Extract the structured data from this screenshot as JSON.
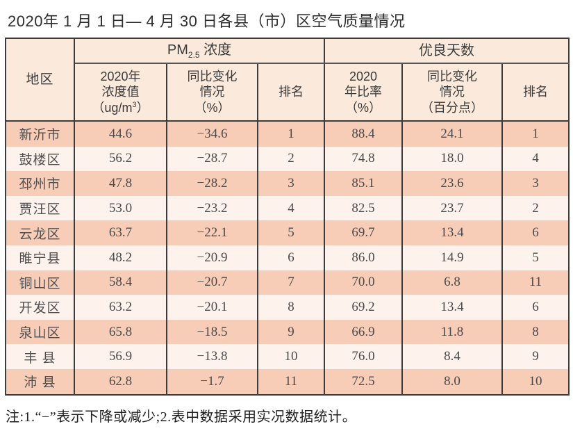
{
  "colors": {
    "row_salmon": "#f8cdb8",
    "row_light": "#fdf2ec",
    "header_bg": "#fbeadb",
    "border_dark": "#3c3c3c",
    "text_main": "#4a4a4a",
    "title_text": "#2d2d2d"
  },
  "title": "2020年 1 月 1 日— 4 月 30 日各县（市）区空气质量情况",
  "table": {
    "header": {
      "region": "地区",
      "pm_group": {
        "prefix": "PM",
        "sub": "2.5",
        "suffix": " 浓度"
      },
      "good_group": "优良天数",
      "pm_value": {
        "line1": "2020年",
        "line2": "浓度值",
        "line3_pre": "（ug/m",
        "line3_sup": "3",
        "line3_post": "）"
      },
      "pm_change": {
        "line1": "同比变化",
        "line2": "情况",
        "line3": "（%）"
      },
      "pm_rank": "排名",
      "good_rate": {
        "line1": "2020",
        "line2": "年比率",
        "line3": "（%）"
      },
      "good_change": {
        "line1": "同比变化",
        "line2": "情况",
        "line3": "（百分点）"
      },
      "good_rank": "排名"
    },
    "rows": [
      {
        "region": "新沂市",
        "pm_value": "44.6",
        "pm_change": "−34.6",
        "pm_rank": "1",
        "good_rate": "88.4",
        "good_change": "24.1",
        "good_rank": "1"
      },
      {
        "region": "鼓楼区",
        "pm_value": "56.2",
        "pm_change": "−28.7",
        "pm_rank": "2",
        "good_rate": "74.8",
        "good_change": "18.0",
        "good_rank": "4"
      },
      {
        "region": "邳州市",
        "pm_value": "47.8",
        "pm_change": "−28.2",
        "pm_rank": "3",
        "good_rate": "85.1",
        "good_change": "23.6",
        "good_rank": "3"
      },
      {
        "region": "贾汪区",
        "pm_value": "53.0",
        "pm_change": "−23.2",
        "pm_rank": "4",
        "good_rate": "82.5",
        "good_change": "23.7",
        "good_rank": "2"
      },
      {
        "region": "云龙区",
        "pm_value": "63.7",
        "pm_change": "−22.1",
        "pm_rank": "5",
        "good_rate": "69.7",
        "good_change": "13.4",
        "good_rank": "6"
      },
      {
        "region": "睢宁县",
        "pm_value": "48.2",
        "pm_change": "−20.9",
        "pm_rank": "6",
        "good_rate": "86.0",
        "good_change": "14.9",
        "good_rank": "5"
      },
      {
        "region": "铜山区",
        "pm_value": "58.4",
        "pm_change": "−20.7",
        "pm_rank": "7",
        "good_rate": "70.0",
        "good_change": "6.8",
        "good_rank": "11"
      },
      {
        "region": "开发区",
        "pm_value": "63.2",
        "pm_change": "−20.1",
        "pm_rank": "8",
        "good_rate": "69.2",
        "good_change": "13.4",
        "good_rank": "6"
      },
      {
        "region": "泉山区",
        "pm_value": "65.8",
        "pm_change": "−18.5",
        "pm_rank": "9",
        "good_rate": "66.9",
        "good_change": "11.8",
        "good_rank": "8"
      },
      {
        "region": "丰 县",
        "pm_value": "56.9",
        "pm_change": "−13.8",
        "pm_rank": "10",
        "good_rate": "76.0",
        "good_change": "8.4",
        "good_rank": "9"
      },
      {
        "region": "沛 县",
        "pm_value": "62.8",
        "pm_change": "−1.7",
        "pm_rank": "11",
        "good_rate": "72.5",
        "good_change": "8.0",
        "good_rank": "10"
      }
    ]
  },
  "note": "注:1.“−”表示下降或减少;2.表中数据采用实况数据统计。"
}
